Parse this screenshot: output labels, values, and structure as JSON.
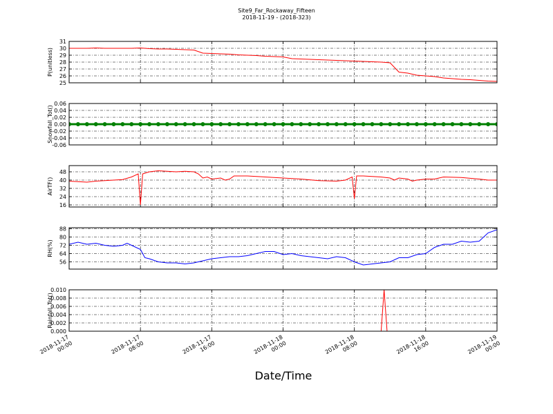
{
  "figure": {
    "title": "Site9_Far_Rockaway_Fifteen",
    "subtitle": "2018-11-19 - (2018-323)",
    "xlabel": "Date/Time"
  },
  "chart_data": [
    {
      "type": "line",
      "ylabel": "P(unitless)",
      "color": "#ff0000",
      "xlim": [
        "2018-11-17 00:00",
        "2018-11-19 00:00"
      ],
      "xticks": [
        "2018-11-17 00:00",
        "2018-11-17 08:00",
        "2018-11-17 16:00",
        "2018-11-18 00:00",
        "2018-11-18 08:00",
        "2018-11-18 16:00",
        "2018-11-19 00:00"
      ],
      "ylim": [
        25,
        31
      ],
      "yticks": [
        25,
        26,
        27,
        28,
        29,
        30,
        31
      ],
      "grid": true,
      "x": [
        "2018-11-17 00:00",
        "2018-11-17 01:00",
        "2018-11-17 02:00",
        "2018-11-17 03:00",
        "2018-11-17 04:00",
        "2018-11-17 05:00",
        "2018-11-17 06:00",
        "2018-11-17 07:00",
        "2018-11-17 08:00",
        "2018-11-17 09:00",
        "2018-11-17 10:00",
        "2018-11-17 11:00",
        "2018-11-17 12:00",
        "2018-11-17 13:00",
        "2018-11-17 14:00",
        "2018-11-17 15:00",
        "2018-11-17 16:00",
        "2018-11-17 17:00",
        "2018-11-17 18:00",
        "2018-11-17 19:00",
        "2018-11-17 20:00",
        "2018-11-17 21:00",
        "2018-11-17 22:00",
        "2018-11-17 23:00",
        "2018-11-18 00:00",
        "2018-11-18 01:00",
        "2018-11-18 02:00",
        "2018-11-18 03:00",
        "2018-11-18 04:00",
        "2018-11-18 05:00",
        "2018-11-18 06:00",
        "2018-11-18 07:00",
        "2018-11-18 08:00",
        "2018-11-18 09:00",
        "2018-11-18 10:00",
        "2018-11-18 11:00",
        "2018-11-18 12:00",
        "2018-11-18 13:00",
        "2018-11-18 14:00",
        "2018-11-18 15:00",
        "2018-11-18 16:00",
        "2018-11-18 17:00",
        "2018-11-18 18:00",
        "2018-11-18 19:00",
        "2018-11-18 20:00",
        "2018-11-18 21:00",
        "2018-11-18 22:00",
        "2018-11-18 23:00",
        "2018-11-19 00:00"
      ],
      "values": [
        30.0,
        30.0,
        30.0,
        30.05,
        30.0,
        30.0,
        30.0,
        30.0,
        30.05,
        29.95,
        29.9,
        29.9,
        29.85,
        29.8,
        29.75,
        29.3,
        29.25,
        29.2,
        29.15,
        29.05,
        29.0,
        28.95,
        28.85,
        28.8,
        28.75,
        28.5,
        28.45,
        28.4,
        28.35,
        28.3,
        28.25,
        28.2,
        28.15,
        28.1,
        28.05,
        28.0,
        27.9,
        26.55,
        26.4,
        26.1,
        26.0,
        25.9,
        25.7,
        25.6,
        25.5,
        25.45,
        25.35,
        25.25,
        25.2
      ]
    },
    {
      "type": "line",
      "ylabel": "Snowfall_Tot()",
      "color": "#008000",
      "marker": true,
      "xlim": [
        "2018-11-17 00:00",
        "2018-11-19 00:00"
      ],
      "xticks": [
        "2018-11-17 00:00",
        "2018-11-17 08:00",
        "2018-11-17 16:00",
        "2018-11-18 00:00",
        "2018-11-18 08:00",
        "2018-11-18 16:00",
        "2018-11-19 00:00"
      ],
      "ylim": [
        -0.06,
        0.06
      ],
      "yticks": [
        -0.06,
        -0.04,
        -0.02,
        {
          "value": 0,
          "label": "0.00"
        },
        0.02,
        0.04,
        0.06
      ],
      "grid": true,
      "x": [
        "2018-11-17 00:00",
        "2018-11-17 01:00",
        "2018-11-17 02:00",
        "2018-11-17 03:00",
        "2018-11-17 04:00",
        "2018-11-17 05:00",
        "2018-11-17 06:00",
        "2018-11-17 07:00",
        "2018-11-17 08:00",
        "2018-11-17 09:00",
        "2018-11-17 10:00",
        "2018-11-17 11:00",
        "2018-11-17 12:00",
        "2018-11-17 13:00",
        "2018-11-17 14:00",
        "2018-11-17 15:00",
        "2018-11-17 16:00",
        "2018-11-17 17:00",
        "2018-11-17 18:00",
        "2018-11-17 19:00",
        "2018-11-17 20:00",
        "2018-11-17 21:00",
        "2018-11-17 22:00",
        "2018-11-17 23:00",
        "2018-11-18 00:00",
        "2018-11-18 01:00",
        "2018-11-18 02:00",
        "2018-11-18 03:00",
        "2018-11-18 04:00",
        "2018-11-18 05:00",
        "2018-11-18 06:00",
        "2018-11-18 07:00",
        "2018-11-18 08:00",
        "2018-11-18 09:00",
        "2018-11-18 10:00",
        "2018-11-18 11:00",
        "2018-11-18 12:00",
        "2018-11-18 13:00",
        "2018-11-18 14:00",
        "2018-11-18 15:00",
        "2018-11-18 16:00",
        "2018-11-18 17:00",
        "2018-11-18 18:00",
        "2018-11-18 19:00",
        "2018-11-18 20:00",
        "2018-11-18 21:00",
        "2018-11-18 22:00",
        "2018-11-18 23:00",
        "2018-11-19 00:00"
      ],
      "values": [
        0,
        0,
        0,
        0,
        0,
        0,
        0,
        0,
        0,
        0,
        0,
        0,
        0,
        0,
        0,
        0,
        0,
        0,
        0,
        0,
        0,
        0,
        0,
        0,
        0,
        0,
        0,
        0,
        0,
        0,
        0,
        0,
        0,
        0,
        0,
        0,
        0,
        0,
        0,
        0,
        0,
        0,
        0,
        0,
        0,
        0,
        0,
        0,
        0
      ]
    },
    {
      "type": "line",
      "ylabel": "AirTF()",
      "color": "#ff0000",
      "xlim": [
        "2018-11-17 00:00",
        "2018-11-19 00:00"
      ],
      "xticks": [
        "2018-11-17 00:00",
        "2018-11-17 08:00",
        "2018-11-17 16:00",
        "2018-11-18 00:00",
        "2018-11-18 08:00",
        "2018-11-18 16:00",
        "2018-11-19 00:00"
      ],
      "ylim": [
        14,
        54
      ],
      "yticks": [
        16,
        24,
        32,
        40,
        48
      ],
      "grid": true,
      "x": [
        "2018-11-17 00:00",
        "2018-11-17 02:00",
        "2018-11-17 03:00",
        "2018-11-17 05:00",
        "2018-11-17 06:00",
        "2018-11-17 07:00",
        "2018-11-17 07:45",
        "2018-11-17 08:00",
        "2018-11-17 08:15",
        "2018-11-17 09:00",
        "2018-11-17 10:00",
        "2018-11-17 11:00",
        "2018-11-17 12:00",
        "2018-11-17 13:00",
        "2018-11-17 14:00",
        "2018-11-17 14:30",
        "2018-11-17 15:00",
        "2018-11-17 15:30",
        "2018-11-17 16:00",
        "2018-11-17 17:00",
        "2018-11-17 17:30",
        "2018-11-17 18:00",
        "2018-11-17 18:30",
        "2018-11-17 20:00",
        "2018-11-17 22:00",
        "2018-11-18 00:00",
        "2018-11-18 02:00",
        "2018-11-18 04:00",
        "2018-11-18 06:00",
        "2018-11-18 07:00",
        "2018-11-18 07:45",
        "2018-11-18 08:00",
        "2018-11-18 08:15",
        "2018-11-18 09:00",
        "2018-11-18 10:00",
        "2018-11-18 11:00",
        "2018-11-18 12:00",
        "2018-11-18 12:30",
        "2018-11-18 13:00",
        "2018-11-18 14:00",
        "2018-11-18 14:30",
        "2018-11-18 15:00",
        "2018-11-18 16:00",
        "2018-11-18 17:00",
        "2018-11-18 18:00",
        "2018-11-18 20:00",
        "2018-11-18 22:00",
        "2018-11-18 23:00",
        "2018-11-19 00:00"
      ],
      "values": [
        39,
        38,
        39,
        40,
        40.5,
        43,
        46,
        16,
        46,
        48,
        49,
        48.5,
        48,
        48.5,
        48,
        46,
        42,
        43,
        41,
        42,
        40,
        41,
        44,
        44,
        43,
        42,
        41,
        39.5,
        39,
        40,
        43,
        22,
        44,
        44,
        43.5,
        43,
        42,
        40,
        42,
        41,
        39,
        40,
        41,
        41,
        43,
        42.5,
        41,
        40,
        40
      ]
    },
    {
      "type": "line",
      "ylabel": "RH(%)",
      "color": "#0000ff",
      "xlim": [
        "2018-11-17 00:00",
        "2018-11-19 00:00"
      ],
      "xticks": [
        "2018-11-17 00:00",
        "2018-11-17 08:00",
        "2018-11-17 16:00",
        "2018-11-18 00:00",
        "2018-11-18 08:00",
        "2018-11-18 16:00",
        "2018-11-19 00:00"
      ],
      "ylim": [
        49,
        89
      ],
      "yticks": [
        56,
        64,
        72,
        80,
        88
      ],
      "grid": true,
      "x": [
        "2018-11-17 00:00",
        "2018-11-17 01:00",
        "2018-11-17 02:00",
        "2018-11-17 03:00",
        "2018-11-17 04:00",
        "2018-11-17 05:00",
        "2018-11-17 06:00",
        "2018-11-17 06:30",
        "2018-11-17 07:00",
        "2018-11-17 08:00",
        "2018-11-17 08:30",
        "2018-11-17 09:00",
        "2018-11-17 10:00",
        "2018-11-17 11:00",
        "2018-11-17 12:00",
        "2018-11-17 13:00",
        "2018-11-17 14:00",
        "2018-11-17 15:00",
        "2018-11-17 16:00",
        "2018-11-17 17:00",
        "2018-11-17 18:00",
        "2018-11-17 19:00",
        "2018-11-17 20:00",
        "2018-11-17 21:00",
        "2018-11-17 22:00",
        "2018-11-17 23:00",
        "2018-11-18 00:00",
        "2018-11-18 01:00",
        "2018-11-18 02:00",
        "2018-11-18 03:00",
        "2018-11-18 04:00",
        "2018-11-18 05:00",
        "2018-11-18 06:00",
        "2018-11-18 07:00",
        "2018-11-18 08:00",
        "2018-11-18 09:00",
        "2018-11-18 10:00",
        "2018-11-18 11:00",
        "2018-11-18 12:00",
        "2018-11-18 13:00",
        "2018-11-18 14:00",
        "2018-11-18 15:00",
        "2018-11-18 16:00",
        "2018-11-18 17:00",
        "2018-11-18 18:00",
        "2018-11-18 19:00",
        "2018-11-18 20:00",
        "2018-11-18 21:00",
        "2018-11-18 22:00",
        "2018-11-18 23:00",
        "2018-11-19 00:00"
      ],
      "values": [
        73,
        75,
        73,
        74,
        72,
        71,
        72,
        74,
        72,
        68,
        60,
        59,
        56,
        55,
        55,
        54,
        55,
        57,
        59,
        60,
        61,
        61,
        62,
        64,
        66,
        66,
        63,
        64,
        62,
        61,
        60,
        59,
        61,
        60,
        56,
        53,
        54,
        55,
        56,
        60,
        60,
        63,
        64,
        70,
        73,
        73,
        76,
        75,
        76,
        84,
        87
      ]
    },
    {
      "type": "line",
      "ylabel": "Rainfall_Tot()",
      "color": "#ff0000",
      "show_xtick_labels": true,
      "xlim": [
        "2018-11-17 00:00",
        "2018-11-19 00:00"
      ],
      "xticks": [
        "2018-11-17 00:00",
        "2018-11-17 08:00",
        "2018-11-17 16:00",
        "2018-11-18 00:00",
        "2018-11-18 08:00",
        "2018-11-18 16:00",
        "2018-11-19 00:00"
      ],
      "ylim": [
        0,
        0.01
      ],
      "yticks": [
        {
          "value": 0,
          "label": "0.000"
        },
        0.002,
        0.004,
        0.006,
        0.008,
        {
          "value": 0.01,
          "label": "0.010"
        }
      ],
      "grid": true,
      "x": [
        "2018-11-17 00:00",
        "2018-11-18 11:00",
        "2018-11-18 11:20",
        "2018-11-18 11:40",
        "2018-11-19 00:00"
      ],
      "values": [
        0,
        0,
        0.01,
        0,
        0
      ]
    }
  ]
}
